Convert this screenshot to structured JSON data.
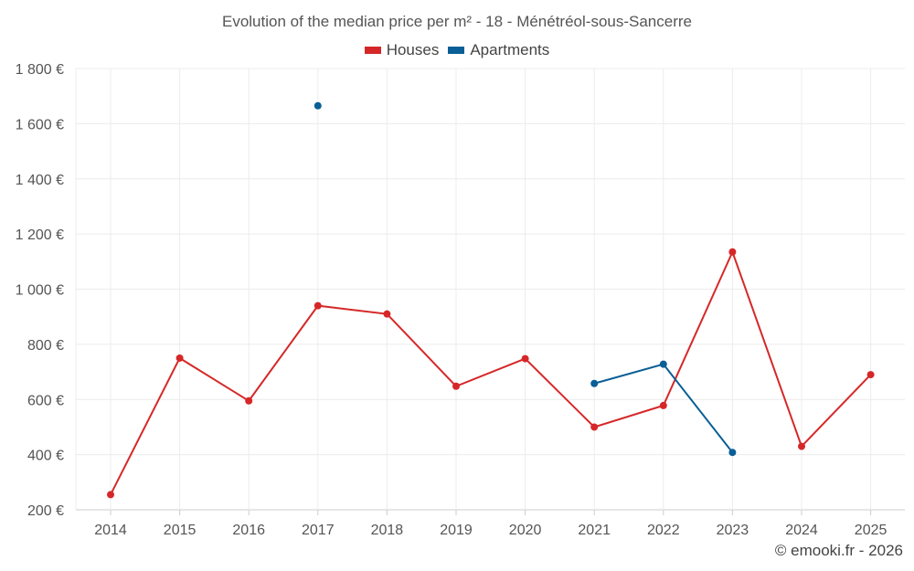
{
  "chart_data": {
    "type": "line",
    "title": "Evolution of the median price per m² - 18 - Ménétréol-sous-Sancerre",
    "xlabel": "",
    "ylabel": "",
    "categories": [
      "2014",
      "2015",
      "2016",
      "2017",
      "2018",
      "2019",
      "2020",
      "2021",
      "2022",
      "2023",
      "2024",
      "2025"
    ],
    "ylim": [
      200,
      1800
    ],
    "yticks": [
      200,
      400,
      600,
      800,
      1000,
      1200,
      1400,
      1600,
      1800
    ],
    "ytick_labels": [
      "200 €",
      "400 €",
      "600 €",
      "800 €",
      "1 000 €",
      "1 200 €",
      "1 400 €",
      "1 600 €",
      "1 800 €"
    ],
    "grid": true,
    "legend_position": "top-center",
    "series": [
      {
        "name": "Houses",
        "color": "#d62728",
        "values": [
          255,
          750,
          595,
          940,
          910,
          648,
          748,
          500,
          578,
          1135,
          430,
          690
        ]
      },
      {
        "name": "Apartments",
        "color": "#0a5f96",
        "values": [
          null,
          null,
          null,
          1665,
          null,
          null,
          null,
          658,
          728,
          408,
          null,
          null
        ]
      }
    ]
  },
  "credit": "© emooki.fr - 2026"
}
